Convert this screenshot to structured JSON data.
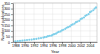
{
  "chart_data": {
    "type": "scatter",
    "xlabel": "Year",
    "ylabel": "Number of publications",
    "x": [
      1988,
      1988.5,
      1989,
      1989.5,
      1990,
      1990.5,
      1991,
      1991.5,
      1992,
      1992.5,
      1993,
      1993.5,
      1994,
      1994.3,
      1994.7,
      1995,
      1995.4,
      1995.8,
      1996,
      1996.3,
      1996.7,
      1997,
      1997.3,
      1997.7,
      1998,
      1998.3,
      1998.7,
      1999,
      1999.3,
      1999.7,
      2000,
      2000.3,
      2000.7,
      2001,
      2001.3,
      2001.7,
      2002,
      2002.3,
      2002.7,
      2003,
      2003.3,
      2003.7,
      2004,
      2004.3,
      2004.7,
      2005,
      2005.3
    ],
    "values": [
      5,
      8,
      10,
      12,
      15,
      18,
      20,
      22,
      25,
      28,
      32,
      35,
      40,
      43,
      46,
      52,
      55,
      58,
      65,
      70,
      75,
      85,
      90,
      95,
      105,
      110,
      118,
      128,
      133,
      140,
      152,
      158,
      165,
      178,
      183,
      190,
      205,
      212,
      220,
      235,
      242,
      250,
      268,
      275,
      285,
      300,
      310
    ],
    "color": "#7ecfea",
    "xlim": [
      1987.5,
      2005.5
    ],
    "ylim": [
      0,
      350
    ],
    "xticks": [
      1988,
      1990,
      1992,
      1994,
      1996,
      1998,
      2000,
      2002,
      2004
    ],
    "yticks": [
      0,
      50,
      100,
      150,
      200,
      250,
      300,
      350
    ],
    "grid": true
  }
}
